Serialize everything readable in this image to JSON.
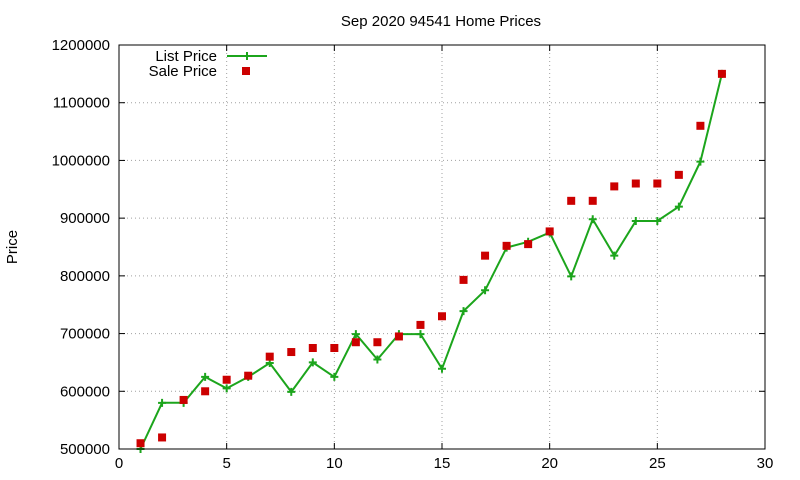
{
  "chart_data": {
    "type": "scatter",
    "title": "Sep 2020 94541 Home Prices",
    "xlabel": "",
    "ylabel": "Price",
    "xlim": [
      0,
      30
    ],
    "ylim": [
      500000,
      1200000
    ],
    "x_ticks": [
      "0",
      "5",
      "10",
      "15",
      "20",
      "25",
      "30"
    ],
    "y_ticks": [
      "500000",
      "600000",
      "700000",
      "800000",
      "900000",
      "1000000",
      "1100000",
      "1200000"
    ],
    "grid": true,
    "legend_position": "top-left",
    "series": [
      {
        "name": "List Price",
        "style": "line+plus",
        "color": "#1ca51c",
        "x": [
          1,
          2,
          3,
          4,
          5,
          6,
          7,
          8,
          9,
          10,
          11,
          12,
          13,
          14,
          15,
          16,
          17,
          18,
          19,
          20,
          21,
          22,
          23,
          24,
          25,
          26,
          27,
          28
        ],
        "values": [
          500000,
          580000,
          580000,
          625000,
          605000,
          625000,
          649000,
          599000,
          650000,
          625000,
          699000,
          655000,
          699000,
          699000,
          639000,
          739000,
          775000,
          849000,
          859000,
          875000,
          799000,
          898000,
          835000,
          895000,
          895000,
          920000,
          998000,
          1150000
        ]
      },
      {
        "name": "Sale Price",
        "style": "square",
        "color": "#cc0000",
        "x": [
          1,
          2,
          3,
          4,
          5,
          6,
          7,
          8,
          9,
          10,
          11,
          12,
          13,
          14,
          15,
          16,
          17,
          18,
          19,
          20,
          21,
          22,
          23,
          24,
          25,
          26,
          27,
          28
        ],
        "values": [
          510000,
          520000,
          585000,
          600000,
          620000,
          627000,
          660000,
          668000,
          675000,
          675000,
          685000,
          685000,
          695000,
          715000,
          730000,
          793000,
          835000,
          852000,
          855000,
          877000,
          930000,
          930000,
          955000,
          960000,
          960000,
          975000,
          1060000,
          1150000
        ]
      }
    ]
  }
}
